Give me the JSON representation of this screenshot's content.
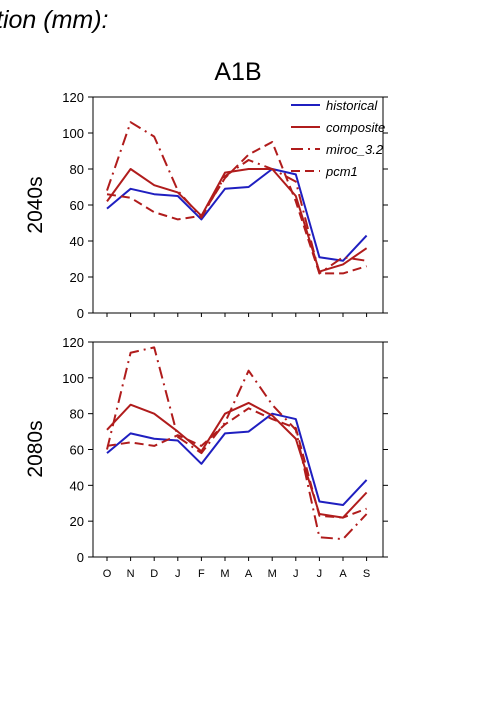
{
  "heading": "tion (mm):",
  "chart_data": [
    {
      "type": "line",
      "title": "A1B",
      "ylabel": "2040s",
      "ylim": [
        0,
        120
      ],
      "yticks": [
        "0",
        "20",
        "40",
        "60",
        "80",
        "100",
        "120"
      ],
      "categories": [
        "O",
        "N",
        "D",
        "J",
        "F",
        "M",
        "A",
        "M",
        "J",
        "J",
        "A",
        "S"
      ],
      "legend_position": "top-right",
      "series": [
        {
          "name": "historical",
          "color": "#1f1fc0",
          "dash": "solid",
          "values": [
            58,
            69,
            66,
            65,
            52,
            69,
            70,
            80,
            77,
            31,
            29,
            43
          ]
        },
        {
          "name": "composite",
          "color": "#b01c1c",
          "dash": "solid",
          "values": [
            62,
            80,
            71,
            67,
            54,
            78,
            80,
            80,
            65,
            23,
            27,
            36
          ]
        },
        {
          "name": "miroc_3.2",
          "color": "#b01c1c",
          "dash": "dashdot",
          "values": [
            68,
            106,
            98,
            68,
            53,
            76,
            85,
            80,
            73,
            22,
            31,
            29
          ]
        },
        {
          "name": "pcm1",
          "color": "#b01c1c",
          "dash": "dash",
          "values": [
            66,
            64,
            56,
            52,
            54,
            75,
            88,
            95,
            62,
            22,
            22,
            26
          ]
        }
      ]
    },
    {
      "type": "line",
      "ylabel": "2080s",
      "ylim": [
        0,
        120
      ],
      "yticks": [
        "0",
        "20",
        "40",
        "60",
        "80",
        "100",
        "120"
      ],
      "categories": [
        "O",
        "N",
        "D",
        "J",
        "F",
        "M",
        "A",
        "M",
        "J",
        "J",
        "A",
        "S"
      ],
      "series": [
        {
          "name": "historical",
          "color": "#1f1fc0",
          "dash": "solid",
          "values": [
            58,
            69,
            66,
            65,
            52,
            69,
            70,
            80,
            77,
            31,
            29,
            43
          ]
        },
        {
          "name": "composite",
          "color": "#b01c1c",
          "dash": "solid",
          "values": [
            71,
            85,
            80,
            70,
            59,
            80,
            86,
            79,
            66,
            24,
            22,
            36
          ]
        },
        {
          "name": "miroc_3.2",
          "color": "#b01c1c",
          "dash": "dashdot",
          "values": [
            60,
            114,
            117,
            67,
            58,
            75,
            104,
            85,
            71,
            11,
            10,
            24
          ]
        },
        {
          "name": "pcm1",
          "color": "#b01c1c",
          "dash": "dash",
          "values": [
            62,
            64,
            62,
            68,
            62,
            74,
            83,
            77,
            72,
            23,
            22,
            27
          ]
        }
      ]
    }
  ]
}
